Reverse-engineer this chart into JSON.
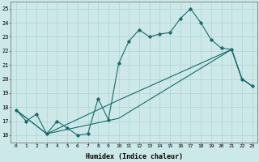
{
  "xlabel": "Humidex (Indice chaleur)",
  "background_color": "#cce8e8",
  "grid_color": "#a8d0d0",
  "line_color": "#1a6b6b",
  "xlim": [
    -0.5,
    23.5
  ],
  "ylim": [
    15.5,
    25.5
  ],
  "yticks": [
    16,
    17,
    18,
    19,
    20,
    21,
    22,
    23,
    24,
    25
  ],
  "xticks": [
    0,
    1,
    2,
    3,
    4,
    5,
    6,
    7,
    8,
    9,
    10,
    11,
    12,
    13,
    14,
    15,
    16,
    17,
    18,
    19,
    20,
    21,
    22,
    23
  ],
  "line1_x": [
    0,
    1,
    2,
    3,
    4,
    5,
    6,
    7,
    8,
    9,
    10,
    11,
    12,
    13,
    14,
    15,
    16,
    17,
    18,
    19,
    20,
    21,
    22,
    23
  ],
  "line1_y": [
    17.8,
    17.0,
    17.5,
    16.1,
    17.0,
    16.5,
    16.0,
    16.1,
    18.6,
    17.1,
    21.1,
    22.7,
    23.5,
    23.0,
    23.2,
    23.3,
    24.3,
    25.0,
    24.0,
    22.8,
    22.2,
    22.1,
    20.0,
    19.5
  ],
  "line2_x": [
    0,
    3,
    10,
    21,
    22,
    23
  ],
  "line2_y": [
    17.8,
    16.1,
    18.5,
    22.1,
    20.0,
    19.5
  ],
  "line3_x": [
    0,
    3,
    10,
    21,
    22,
    23
  ],
  "line3_y": [
    17.8,
    16.1,
    17.2,
    22.1,
    20.0,
    19.5
  ]
}
